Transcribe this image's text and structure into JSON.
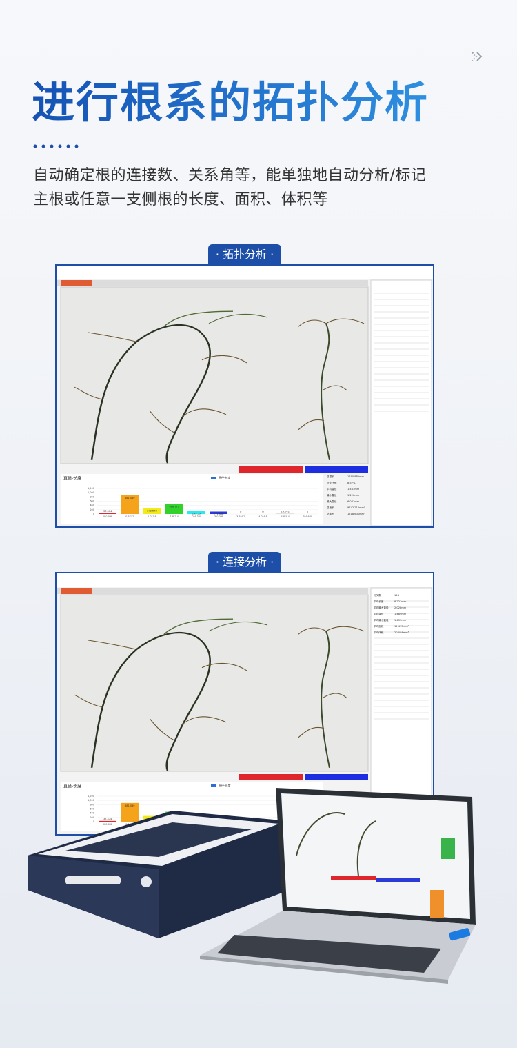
{
  "header": {
    "title": "进行根系的拓扑分析",
    "description": [
      "自动确定根的连接数、关系角等，能单独地自动分析/标记",
      "主根或任意一支侧根的长度、面积、体积等"
    ]
  },
  "panels": [
    {
      "badge": "· 拓扑分析 ·",
      "stats": [
        [
          "总根长",
          "1790.885mm"
        ],
        [
          "分支比例",
          "8.57%"
        ],
        [
          "平均直径",
          "1.483mm"
        ],
        [
          "最小直径",
          "1.226mm"
        ],
        [
          "最大直径",
          "6.047mm"
        ],
        [
          "总面积",
          "9742.212mm²"
        ],
        [
          "总体积",
          "1518.631mm³"
        ]
      ]
    },
    {
      "badge": "· 连接分析 ·",
      "stats": [
        [
          "分叉数",
          "124"
        ],
        [
          "平均长度",
          "8.221mm"
        ],
        [
          "平均最大直径",
          "2.028mm"
        ],
        [
          "平均直径",
          "1.489mm"
        ],
        [
          "平均最小直径",
          "1.459mm"
        ],
        [
          "平均面积",
          "12.415mm²"
        ],
        [
          "平均体积",
          "20.004mm³"
        ]
      ]
    }
  ],
  "chart_data": {
    "type": "bar",
    "title": "直径-长度",
    "legend": "直径-长度",
    "color": [
      "#e0262d",
      "#f5a31a",
      "#f2ea1d",
      "#32d12c",
      "#2fe8ef",
      "#2a3ad8",
      "#bfbfbf",
      "#bfbfbf",
      "#bfbfbf",
      "#bfbfbf"
    ],
    "categories": [
      "0.0-0.6",
      "0.6-1.2",
      "1.2-1.8",
      "1.8-2.4",
      "2.4-3.0",
      "3.0-3.6",
      "3.6-4.2",
      "4.2-4.8",
      "4.8-5.4",
      "5.4-6.0"
    ],
    "values": [
      37.474,
      881.049,
      272.578,
      466.773,
      139.53,
      113.666,
      0,
      0,
      14.042,
      0
    ],
    "ylim": [
      0,
      1200
    ],
    "yticks": [
      0,
      200,
      400,
      600,
      800,
      {
        "value": 1000,
        "label": "1,000"
      },
      {
        "value": 1200,
        "label": "1,200"
      }
    ]
  }
}
